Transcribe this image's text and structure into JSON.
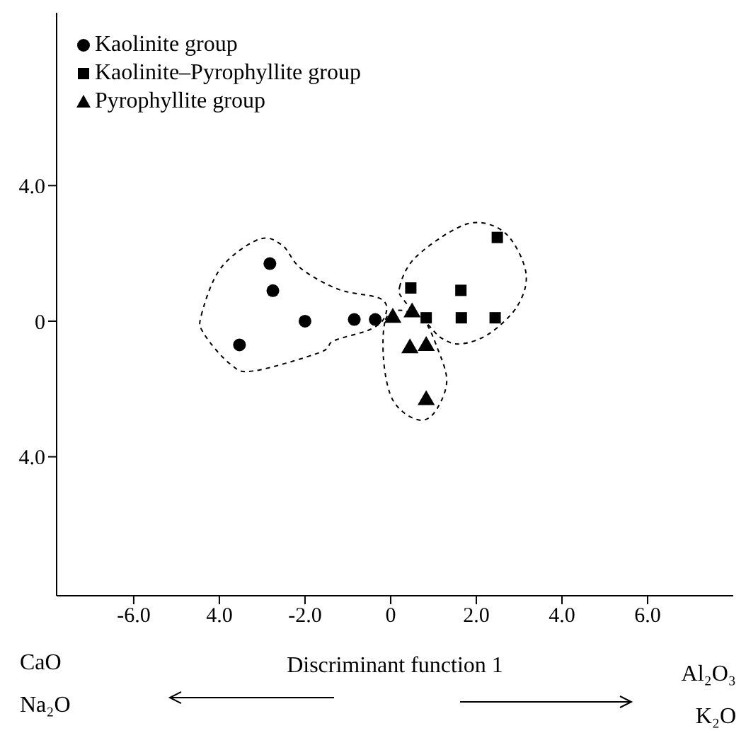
{
  "chart_data": {
    "type": "scatter",
    "xlabel": "Discriminant function 1",
    "xlim": [
      -7.8,
      8
    ],
    "xticks": [
      {
        "value": -6,
        "label": "-6.0"
      },
      {
        "value": -4,
        "label": "4.0"
      },
      {
        "value": -2,
        "label": "-2.0"
      },
      0,
      {
        "value": 2,
        "label": "2.0"
      },
      {
        "value": 4,
        "label": "4.0"
      },
      {
        "value": 6,
        "label": "6.0"
      }
    ],
    "ylim": [
      -8.1,
      9.1
    ],
    "yticks": [
      {
        "value": -4,
        "label": "4.0"
      },
      0,
      {
        "value": 4,
        "label": "4.0"
      }
    ],
    "grid": false,
    "legend": "top left",
    "series": [
      {
        "name": "Kaolinite group",
        "color": "#000000",
        "marker": "circle",
        "x": [
          -2.82,
          -2.75,
          -2.0,
          -3.53,
          -0.85,
          -0.36
        ],
        "values": [
          1.7,
          0.9,
          0,
          -0.7,
          0.05,
          0.05
        ]
      },
      {
        "name": "Kaolinite–Pyrophyllite group",
        "color": "#000000",
        "marker": "square",
        "x": [
          0.47,
          0.83,
          1.64,
          1.65,
          2.44,
          2.49
        ],
        "values": [
          0.98,
          0.1,
          0.91,
          0.1,
          0.1,
          2.47
        ]
      },
      {
        "name": "Pyrophyllite group",
        "color": "#000000",
        "marker": "triangle",
        "x": [
          0.05,
          0.5,
          0.45,
          0.83,
          0.83
        ],
        "values": [
          0.1,
          0.26,
          -0.8,
          -0.73,
          -2.33
        ]
      }
    ],
    "annotations": [
      "CaO",
      "Na₂O",
      "Al₂O₃",
      "K₂O"
    ]
  }
}
